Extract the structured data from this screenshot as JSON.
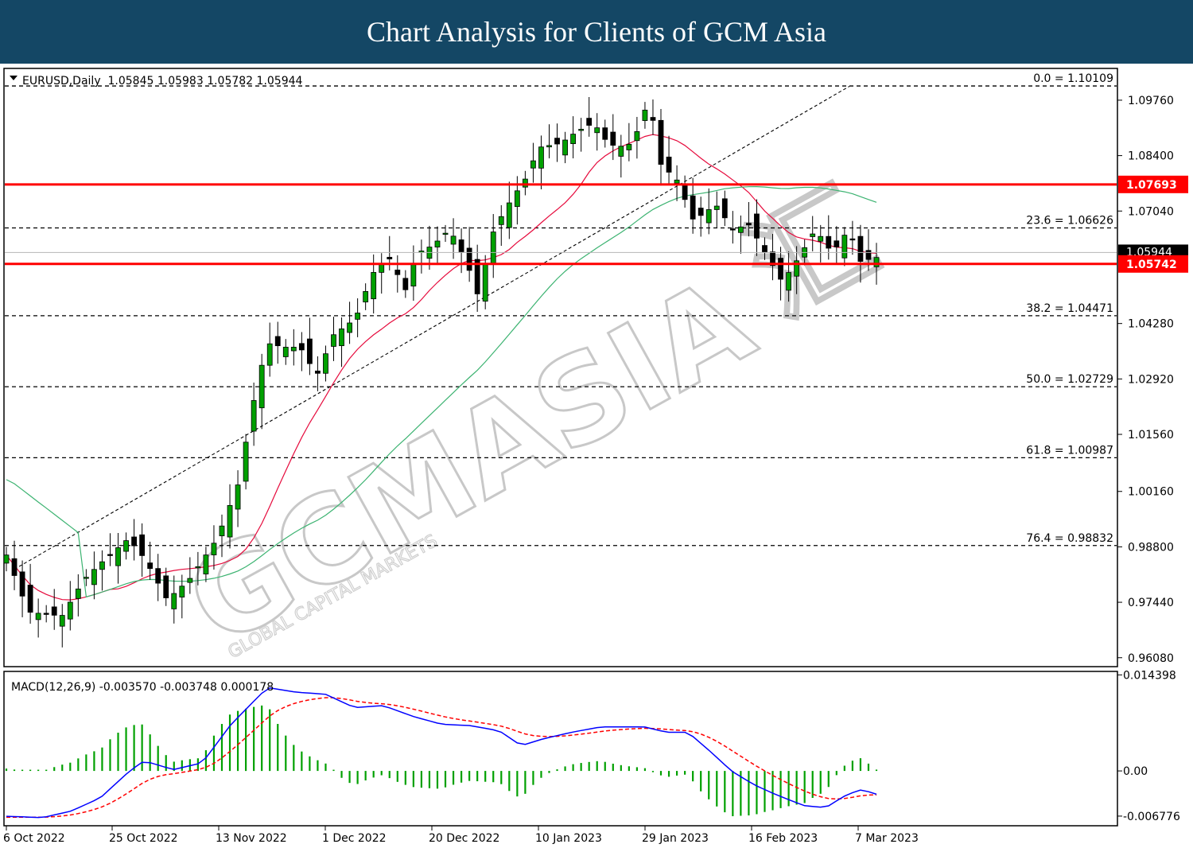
{
  "header": {
    "title": "Chart Analysis for Clients of GCM Asia"
  },
  "watermark": {
    "brand": "GCMASIA",
    "cn": "汇",
    "tagline": "GLOBAL CAPITAL MARKETS"
  },
  "chart_data": {
    "type": "candlestick",
    "symbol_line": "EURUSD,Daily  1.05845 1.05983 1.05782 1.05944",
    "ohlc": {
      "open": 1.05845,
      "high": 1.05983,
      "low": 1.05782,
      "close": 1.05944
    },
    "ylim": [
      0.9588,
      1.1052
    ],
    "y_ticks": [
      "1.09760",
      "1.08400",
      "1.07040",
      "1.04280",
      "1.02920",
      "1.01560",
      "1.00160",
      "0.98800",
      "0.97440",
      "0.96080"
    ],
    "x_ticks": [
      "6 Oct 2022",
      "25 Oct 2022",
      "13 Nov 2022",
      "1 Dec 2022",
      "20 Dec 2022",
      "10 Jan 2023",
      "29 Jan 2023",
      "16 Feb 2023",
      "7 Mar 2023"
    ],
    "current_price_label": "1.05944",
    "resistance": {
      "value": 1.07693,
      "label": "1.07693",
      "color": "#ff0000"
    },
    "support": {
      "value": 1.05742,
      "label": "1.05742",
      "color": "#ff0000"
    },
    "fib_levels": [
      {
        "value": 1.10109,
        "label": "0.0 = 1.10109"
      },
      {
        "value": 1.06626,
        "label": "23.6 = 1.06626"
      },
      {
        "value": 1.04471,
        "label": "38.2 = 1.04471"
      },
      {
        "value": 1.02729,
        "label": "50.0 = 1.02729"
      },
      {
        "value": 1.00987,
        "label": "61.8 = 1.00987"
      },
      {
        "value": 0.98832,
        "label": "76.4 = 0.98832"
      }
    ],
    "ma_fast_color": "#e60a3c",
    "ma_slow_color": "#3cb371",
    "bull_color": "#00a000",
    "bear_color": "#000000",
    "macd": {
      "label": "MACD(12,26,9) -0.003570 -0.003748 0.000178",
      "ylim": [
        -0.0081,
        0.0148
      ],
      "y_ticks": [
        "0.014398",
        "0.00",
        "-0.006776"
      ],
      "main_color": "#0000ff",
      "signal_color": "#ff0000",
      "hist_color": "#00a000"
    }
  }
}
